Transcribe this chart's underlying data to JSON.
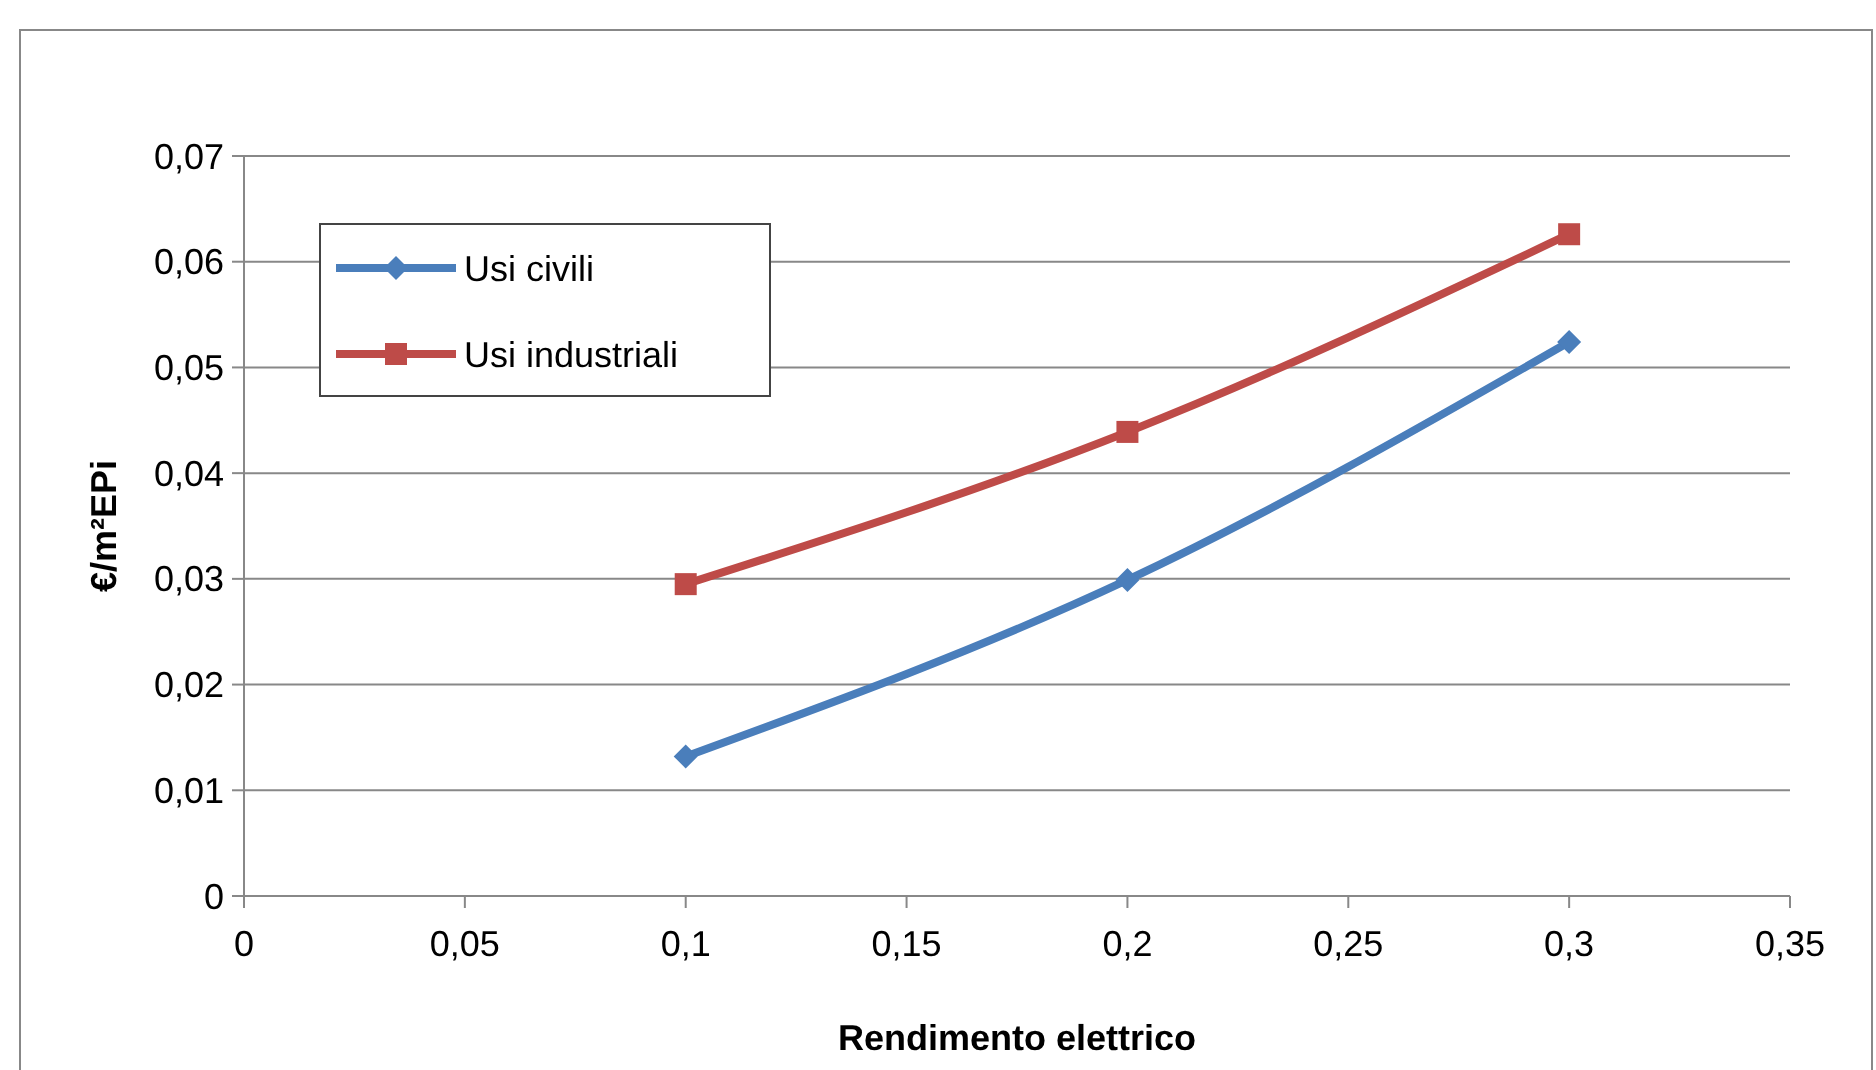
{
  "chart_data": {
    "type": "line",
    "xlabel": "Rendimento elettrico",
    "ylabel": "€/m²EPi",
    "x": [
      0.1,
      0.2,
      0.3
    ],
    "series": [
      {
        "name": "Usi civili",
        "color": "#4a7ebb",
        "marker": "diamond",
        "values": [
          0.0132,
          0.0299,
          0.0524
        ]
      },
      {
        "name": "Usi industriali",
        "color": "#be4b48",
        "marker": "square",
        "values": [
          0.0295,
          0.0439,
          0.0626
        ]
      }
    ],
    "xlim": [
      0,
      0.35
    ],
    "xticks": [
      0,
      {
        "value": 0.05,
        "label": "0,05"
      },
      {
        "value": 0.1,
        "label": "0,1"
      },
      {
        "value": 0.15,
        "label": "0,15"
      },
      {
        "value": 0.2,
        "label": "0,2"
      },
      {
        "value": 0.25,
        "label": "0,25"
      },
      {
        "value": 0.3,
        "label": "0,3"
      },
      {
        "value": 0.35,
        "label": "0,35"
      }
    ],
    "ylim": [
      0,
      0.07
    ],
    "yticks": [
      0,
      {
        "value": 0.01,
        "label": "0,01"
      },
      {
        "value": 0.02,
        "label": "0,02"
      },
      {
        "value": 0.03,
        "label": "0,03"
      },
      {
        "value": 0.04,
        "label": "0,04"
      },
      {
        "value": 0.05,
        "label": "0,05"
      },
      {
        "value": 0.06,
        "label": "0,06"
      },
      {
        "value": 0.07,
        "label": "0,07"
      }
    ],
    "grid": "y",
    "legend": "top left",
    "line_style": "solid"
  }
}
